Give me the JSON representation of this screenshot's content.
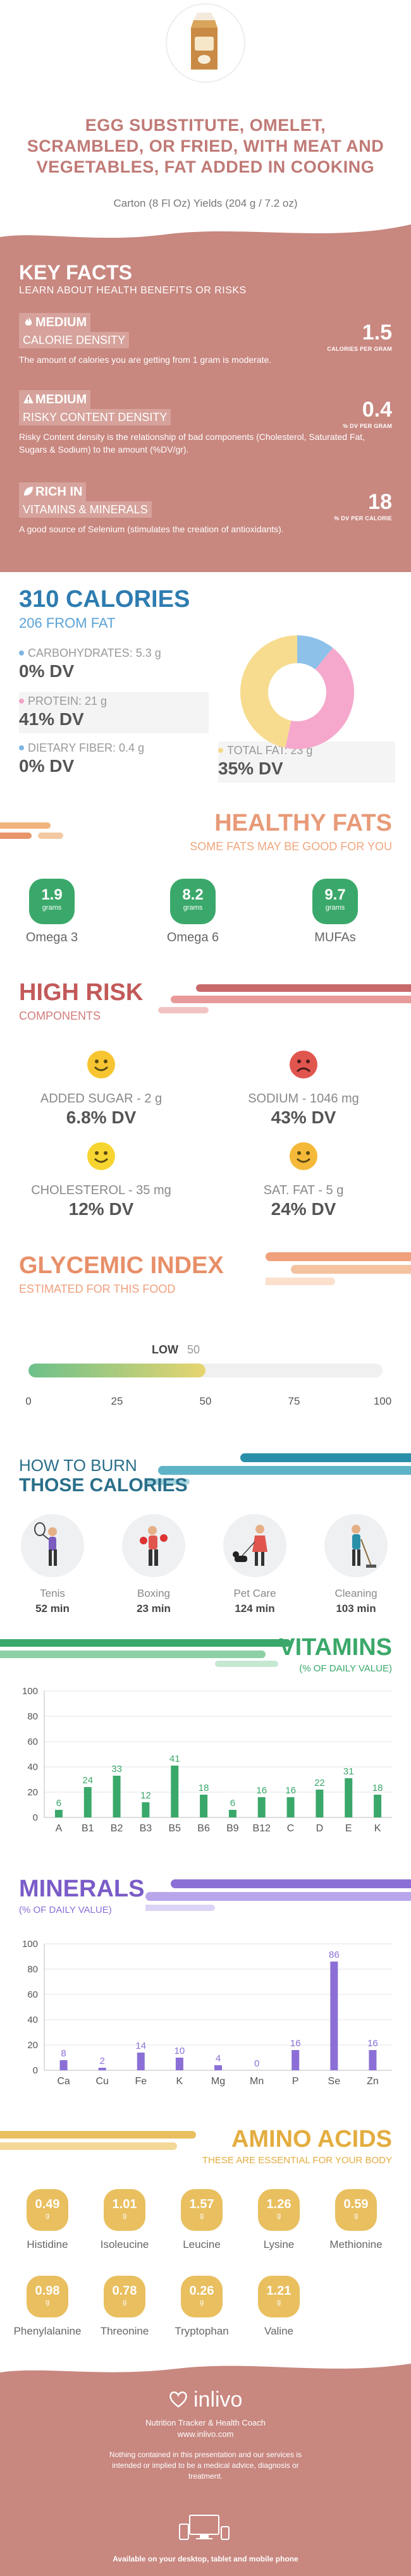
{
  "header": {
    "title": "EGG SUBSTITUTE, OMELET, SCRAMBLED, OR FRIED, WITH MEAT AND VEGETABLES, FAT ADDED IN COOKING",
    "subtitle": "Carton (8 Fl Oz) Yields (204 g / 7.2 oz)"
  },
  "key_facts": {
    "title": "KEY FACTS",
    "subtitle": "LEARN ABOUT HEALTH BENEFITS OR RISKS",
    "items": [
      {
        "level": "MEDIUM",
        "label": "CALORIE DENSITY",
        "value": "1.5",
        "unit": "CALORIES PER GRAM",
        "desc": "The amount of calories you are getting from 1 gram is moderate.",
        "icon": "flame-icon"
      },
      {
        "level": "MEDIUM",
        "label": "RISKY CONTENT DENSITY",
        "value": "0.4",
        "unit": "% DV PER GRAM",
        "desc": "Risky Content density is the relationship of bad components (Cholesterol, Saturated Fat, Sugars & Sodium) to the amount (%DV/gr).",
        "icon": "warning-icon"
      },
      {
        "level": "RICH IN",
        "label": "VITAMINS & MINERALS",
        "value": "18",
        "unit": "% DV PER CALORIE",
        "desc": "A good source of Selenium (stimulates the creation of antioxidants).",
        "icon": "leaf-icon"
      }
    ]
  },
  "calories": {
    "title": "310 CALORIES",
    "from_fat": "206 FROM FAT",
    "nutrients": [
      {
        "name": "CARBOHYDRATES: 5.3 g",
        "dv": "0% DV",
        "color": "#7fb6e3"
      },
      {
        "name": "PROTEIN: 21 g",
        "dv": "41% DV",
        "color": "#f2a3c6"
      },
      {
        "name": "DIETARY FIBER: 0.4 g",
        "dv": "0% DV",
        "color": "#7fb6e3"
      },
      {
        "name": "TOTAL FAT: 23 g",
        "dv": "35% DV",
        "color": "#f5d98c"
      }
    ],
    "donut": [
      {
        "name": "Carbohydrates",
        "value": 5.3,
        "color": "#8ec1ea"
      },
      {
        "name": "Protein",
        "value": 21,
        "color": "#f5a8cb"
      },
      {
        "name": "Total Fat",
        "value": 23,
        "color": "#f7dc8f"
      }
    ]
  },
  "fats": {
    "title": "HEALTHY FATS",
    "subtitle": "SOME FATS MAY BE GOOD FOR YOU",
    "items": [
      {
        "value": "1.9",
        "unit": "grams",
        "name": "Omega 3"
      },
      {
        "value": "8.2",
        "unit": "grams",
        "name": "Omega 6"
      },
      {
        "value": "9.7",
        "unit": "grams",
        "name": "MUFAs"
      }
    ]
  },
  "risk": {
    "title": "HIGH RISK",
    "subtitle": "COMPONENTS",
    "items": [
      {
        "name": "ADDED SUGAR - 2 g",
        "dv": "6.8% DV",
        "face": "happy"
      },
      {
        "name": "SODIUM - 1046 mg",
        "dv": "43% DV",
        "face": "sad"
      },
      {
        "name": "CHOLESTEROL - 35 mg",
        "dv": "12% DV",
        "face": "happy"
      },
      {
        "name": "SAT. FAT - 5 g",
        "dv": "24% DV",
        "face": "happy"
      }
    ]
  },
  "glycemic": {
    "title": "GLYCEMIC INDEX",
    "subtitle": "ESTIMATED FOR THIS FOOD",
    "level": "LOW",
    "value": 50,
    "value_label": "50",
    "ticks": [
      "0",
      "25",
      "50",
      "75",
      "100"
    ]
  },
  "burn": {
    "title_line1": "HOW TO BURN",
    "title_line2": "THOSE CALORIES",
    "items": [
      {
        "name": "Tenis",
        "minutes": "52 min",
        "icon": "tennis-player-icon"
      },
      {
        "name": "Boxing",
        "minutes": "23 min",
        "icon": "boxer-icon"
      },
      {
        "name": "Pet Care",
        "minutes": "124 min",
        "icon": "dog-walker-icon"
      },
      {
        "name": "Cleaning",
        "minutes": "103 min",
        "icon": "cleaning-person-icon"
      }
    ]
  },
  "vitamins": {
    "title": "VITAMINS",
    "subtitle": "(% OF DAILY VALUE)",
    "chart_data": {
      "type": "bar",
      "categories": [
        "A",
        "B1",
        "B2",
        "B3",
        "B5",
        "B6",
        "B9",
        "B12",
        "C",
        "D",
        "E",
        "K"
      ],
      "values": [
        6,
        24,
        33,
        12,
        41,
        18,
        6,
        16,
        16,
        22,
        31,
        18
      ],
      "yticks": [
        "0",
        "20",
        "40",
        "60",
        "80",
        "100"
      ],
      "ylim": [
        0,
        100
      ],
      "color": "#3aa86a"
    }
  },
  "minerals": {
    "title": "MINERALS",
    "subtitle": "(% OF DAILY VALUE)",
    "chart_data": {
      "type": "bar",
      "categories": [
        "Ca",
        "Cu",
        "Fe",
        "K",
        "Mg",
        "Mn",
        "P",
        "Se",
        "Zn"
      ],
      "values": [
        8,
        2,
        14,
        10,
        4,
        0,
        16,
        86,
        16
      ],
      "yticks": [
        "0",
        "20",
        "40",
        "60",
        "80",
        "100"
      ],
      "ylim": [
        0,
        100
      ],
      "color": "#8b6fd6"
    }
  },
  "amino": {
    "title": "AMINO ACIDS",
    "subtitle": "THESE ARE ESSENTIAL FOR YOUR BODY",
    "items": [
      {
        "value": "0.49",
        "unit": "g",
        "name": "Histidine"
      },
      {
        "value": "1.01",
        "unit": "g",
        "name": "Isoleucine"
      },
      {
        "value": "1.57",
        "unit": "g",
        "name": "Leucine"
      },
      {
        "value": "1.26",
        "unit": "g",
        "name": "Lysine"
      },
      {
        "value": "0.59",
        "unit": "g",
        "name": "Methionine"
      },
      {
        "value": "0.98",
        "unit": "g",
        "name": "Phenylalanine"
      },
      {
        "value": "0.78",
        "unit": "g",
        "name": "Threonine"
      },
      {
        "value": "0.26",
        "unit": "g",
        "name": "Tryptophan"
      },
      {
        "value": "1.21",
        "unit": "g",
        "name": "Valine"
      }
    ]
  },
  "footer": {
    "brand": "inlivo",
    "tagline": "Nutrition Tracker & Health Coach",
    "url": "www.inlivo.com",
    "disclaimer": "Nothing contained in this presentation and our services is intended or implied to be a medical advice, diagnosis or treatment.",
    "available": "Available on your desktop, tablet and mobile phone"
  }
}
